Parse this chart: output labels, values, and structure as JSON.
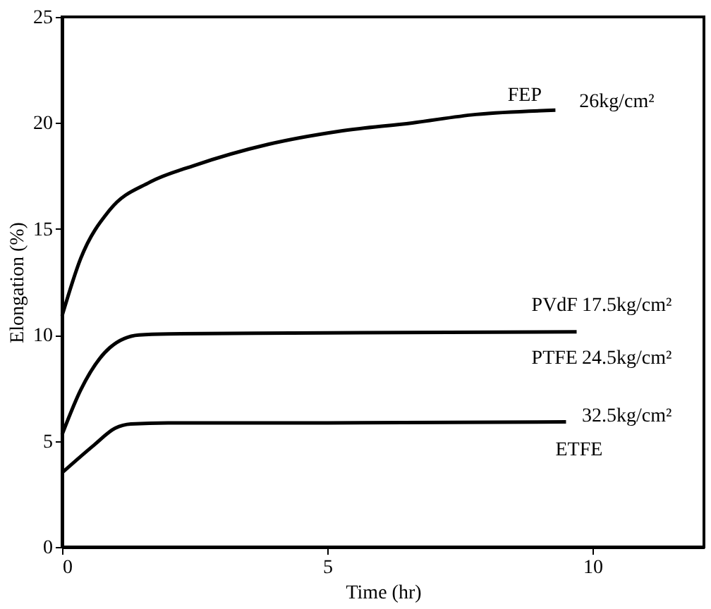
{
  "chart_data": {
    "type": "line",
    "xlabel": "Time (hr)",
    "ylabel": "Elongation (%)",
    "series": [
      {
        "color": "#000000",
        "x": [
          0,
          0.35,
          0.9,
          1.65,
          2.5,
          3.9,
          5.2,
          6.6,
          7.8,
          9.3
        ],
        "values": [
          10.9,
          13.6,
          15.9,
          17.2,
          18.0,
          19.0,
          19.6,
          20.0,
          20.4,
          20.6
        ]
      },
      {
        "color": "#000000",
        "x": [
          0,
          0.35,
          0.9,
          1.45,
          2.0,
          5.0,
          9.7
        ],
        "values": [
          5.3,
          7.4,
          9.4,
          10.0,
          10.05,
          10.1,
          10.15
        ]
      },
      {
        "color": "#000000",
        "x": [
          0,
          0.6,
          1.0,
          1.3,
          2.0,
          5.0,
          9.5
        ],
        "values": [
          3.5,
          4.8,
          5.6,
          5.8,
          5.85,
          5.85,
          5.9
        ]
      }
    ],
    "annotations": [
      "FEP",
      "26kg/cm²",
      "PVdF",
      "17.5kg/cm²",
      "PTFE",
      "24.5kg/cm²",
      "32.5kg/cm²",
      "ETFE"
    ],
    "xlim": [
      0,
      12.1
    ],
    "ylim": [
      0,
      25
    ],
    "xticks": [
      0,
      5,
      10
    ],
    "yticks": [
      0,
      5,
      10,
      15,
      20,
      25
    ],
    "grid": false,
    "marker": "none",
    "line_style": "solid"
  }
}
